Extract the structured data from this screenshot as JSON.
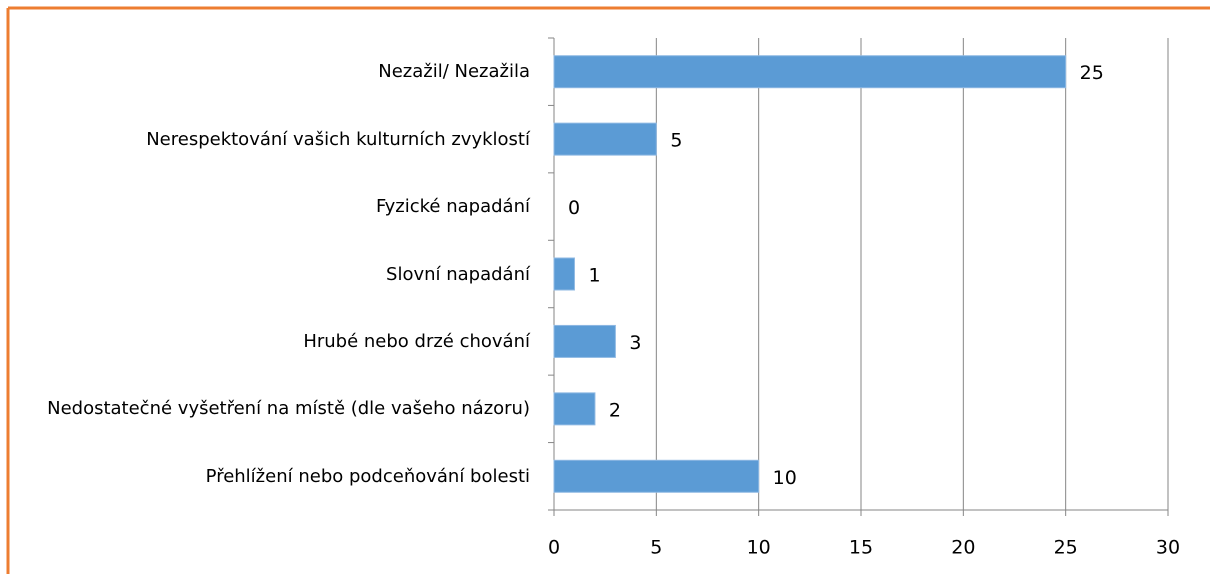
{
  "chart_data": {
    "type": "bar",
    "orientation": "horizontal",
    "categories": [
      "Nezažil/ Nezažila",
      "Nerespektování vašich kulturních zvyklostí",
      "Fyzické napadání",
      "Slovní napadání",
      "Hrubé nebo drzé chování",
      "Nedostatečné vyšetření na místě (dle vašeho názoru)",
      "Přehlížení nebo podceňování bolesti"
    ],
    "values": [
      25,
      5,
      0,
      1,
      3,
      2,
      10
    ],
    "color": "#5b9bd5",
    "xlim": [
      0,
      30
    ],
    "xticks": [
      0,
      5,
      10,
      15,
      20,
      25,
      30
    ],
    "grid": true
  }
}
